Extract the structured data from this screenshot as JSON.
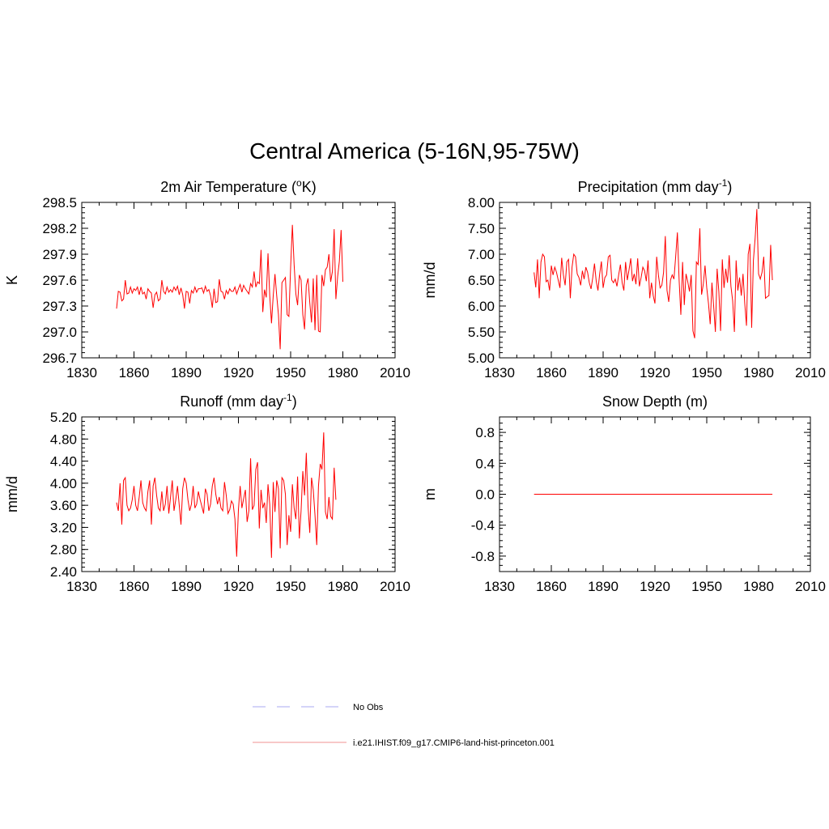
{
  "title": "Central America (5-16N,95-75W)",
  "chart_data": [
    {
      "type": "line",
      "title": "2m Air Temperature (°K)",
      "title_main": "2m Air Temperature (",
      "title_sup": "o",
      "title_end": "K)",
      "ylabel": "K",
      "xlim": [
        1830,
        2010
      ],
      "ylim": [
        296.7,
        298.5
      ],
      "xticks": [
        "1830",
        "1860",
        "1890",
        "1920",
        "1950",
        "1980",
        "2010"
      ],
      "yticks": [
        "296.7",
        "297.0",
        "297.3",
        "297.6",
        "297.9",
        "298.2",
        "298.5"
      ],
      "series": [
        {
          "name": "i.e21.IHIST.f09_g17.CMIP6-land-hist-princeton.001",
          "x_start": 1850,
          "values": [
            297.27,
            297.47,
            297.46,
            297.36,
            297.38,
            297.6,
            297.44,
            297.45,
            297.52,
            297.45,
            297.5,
            297.48,
            297.52,
            297.43,
            297.52,
            297.44,
            297.46,
            297.38,
            297.5,
            297.47,
            297.45,
            297.28,
            297.43,
            297.46,
            297.36,
            297.38,
            297.6,
            297.47,
            297.44,
            297.52,
            297.46,
            297.49,
            297.46,
            297.52,
            297.48,
            297.53,
            297.43,
            297.51,
            297.43,
            297.27,
            297.47,
            297.46,
            297.33,
            297.48,
            297.45,
            297.52,
            297.46,
            297.5,
            297.5,
            297.51,
            297.45,
            297.53,
            297.47,
            297.49,
            297.42,
            297.28,
            297.5,
            297.34,
            297.35,
            297.61,
            297.47,
            297.46,
            297.38,
            297.48,
            297.44,
            297.5,
            297.47,
            297.47,
            297.52,
            297.44,
            297.5,
            297.55,
            297.46,
            297.54,
            297.5,
            297.47,
            297.44,
            297.56,
            297.52,
            297.7,
            297.52,
            297.58,
            297.56,
            297.95,
            297.23,
            297.49,
            297.4,
            297.91,
            297.42,
            297.1,
            297.42,
            297.67,
            297.42,
            297.2,
            296.8,
            297.57,
            297.6,
            297.63,
            297.2,
            297.18,
            297.75,
            298.24,
            297.78,
            297.44,
            297.31,
            297.66,
            297.6,
            297.2,
            297.03,
            297.54,
            297.62,
            297.34,
            297.11,
            297.62,
            297.02,
            297.66,
            297.01,
            297.0,
            297.66,
            297.53,
            297.72,
            297.75,
            297.9,
            297.58,
            297.7,
            298.19,
            297.38,
            297.64,
            297.82,
            298.18,
            297.58
          ]
        }
      ]
    },
    {
      "type": "line",
      "title": "Precipitation (mm day-1)",
      "title_main": "Precipitation (mm day",
      "title_sup": "-1",
      "title_end": ")",
      "ylabel": "mm/d",
      "xlim": [
        1830,
        2010
      ],
      "ylim": [
        5.0,
        8.0
      ],
      "xticks": [
        "1830",
        "1860",
        "1890",
        "1920",
        "1950",
        "1980",
        "2010"
      ],
      "yticks": [
        "5.00",
        "5.50",
        "6.00",
        "6.50",
        "7.00",
        "7.50",
        "8.00"
      ],
      "series": [
        {
          "name": "i.e21.IHIST.f09_g17.CMIP6-land-hist-princeton.001",
          "x_start": 1850,
          "values": [
            6.65,
            6.36,
            6.9,
            6.15,
            6.85,
            7.0,
            6.95,
            6.47,
            6.5,
            6.3,
            6.78,
            6.6,
            6.75,
            6.65,
            6.5,
            6.35,
            6.93,
            6.6,
            6.4,
            6.85,
            6.9,
            6.15,
            6.75,
            7.0,
            6.95,
            6.62,
            6.55,
            6.4,
            6.68,
            6.52,
            6.75,
            6.65,
            6.45,
            6.33,
            6.55,
            6.82,
            6.48,
            6.3,
            6.62,
            6.86,
            6.35,
            6.55,
            6.6,
            6.95,
            6.98,
            6.5,
            6.45,
            6.52,
            6.38,
            6.6,
            6.8,
            6.45,
            6.3,
            6.85,
            6.5,
            6.7,
            6.92,
            6.48,
            6.62,
            6.42,
            6.92,
            6.38,
            6.55,
            6.75,
            6.68,
            6.48,
            6.88,
            6.15,
            6.45,
            6.2,
            6.05,
            6.95,
            6.6,
            6.35,
            6.4,
            6.65,
            7.35,
            6.3,
            6.08,
            6.5,
            6.6,
            6.52,
            6.95,
            7.42,
            6.5,
            5.83,
            6.85,
            6.02,
            6.62,
            6.47,
            6.28,
            6.6,
            5.52,
            5.38,
            6.85,
            6.8,
            7.5,
            6.22,
            6.42,
            6.78,
            6.35,
            6.05,
            5.65,
            6.45,
            6.0,
            5.5,
            6.72,
            6.28,
            5.52,
            6.9,
            6.35,
            6.72,
            6.45,
            6.98,
            6.38,
            6.1,
            5.5,
            6.88,
            6.3,
            6.55,
            6.2,
            6.62,
            6.05,
            5.62,
            7.0,
            7.2,
            5.58,
            6.88,
            7.3,
            7.87,
            6.62,
            6.52,
            6.65,
            6.95,
            6.15,
            6.18,
            6.2,
            7.18,
            6.5
          ]
        }
      ]
    },
    {
      "type": "line",
      "title": "Runoff (mm day-1)",
      "title_main": "Runoff (mm day",
      "title_sup": "-1",
      "title_end": ")",
      "ylabel": "mm/d",
      "xlim": [
        1830,
        2010
      ],
      "ylim": [
        2.4,
        5.2
      ],
      "xticks": [
        "1830",
        "1860",
        "1890",
        "1920",
        "1950",
        "1980",
        "2010"
      ],
      "yticks": [
        "2.40",
        "2.80",
        "3.20",
        "3.60",
        "4.00",
        "4.40",
        "4.80",
        "5.20"
      ],
      "series": [
        {
          "name": "i.e21.IHIST.f09_g17.CMIP6-land-hist-princeton.001",
          "x_start": 1850,
          "values": [
            3.65,
            3.5,
            4.0,
            3.25,
            4.05,
            4.1,
            3.6,
            3.5,
            3.55,
            3.7,
            3.95,
            3.6,
            3.5,
            3.75,
            4.05,
            3.65,
            3.55,
            3.5,
            3.85,
            4.05,
            3.25,
            3.95,
            4.1,
            3.78,
            3.55,
            3.5,
            3.85,
            3.5,
            3.62,
            3.95,
            3.45,
            3.75,
            4.05,
            3.5,
            3.7,
            3.95,
            3.6,
            3.25,
            3.9,
            4.1,
            4.0,
            3.7,
            3.5,
            3.62,
            3.95,
            3.55,
            3.62,
            3.85,
            3.7,
            3.58,
            3.45,
            3.9,
            3.8,
            3.5,
            3.62,
            3.95,
            4.1,
            3.8,
            3.62,
            3.75,
            3.55,
            3.5,
            4.02,
            3.78,
            3.45,
            3.52,
            3.68,
            3.62,
            3.35,
            2.67,
            3.52,
            3.95,
            3.55,
            3.72,
            3.88,
            3.3,
            3.5,
            4.45,
            3.52,
            3.6,
            4.25,
            4.38,
            3.18,
            3.88,
            3.55,
            3.65,
            3.28,
            3.98,
            3.62,
            2.65,
            4.02,
            3.48,
            4.05,
            3.9,
            2.82,
            4.1,
            4.05,
            3.8,
            2.88,
            3.42,
            3.12,
            3.98,
            3.55,
            3.35,
            4.12,
            3.0,
            3.5,
            4.22,
            3.78,
            4.55,
            3.58,
            3.1,
            4.1,
            3.88,
            3.42,
            2.88,
            3.95,
            4.35,
            4.25,
            4.92,
            3.48,
            3.35,
            3.75,
            3.4,
            3.35,
            4.28,
            3.7
          ]
        }
      ]
    },
    {
      "type": "line",
      "title": "Snow Depth (m)",
      "title_main": "Snow Depth (m)",
      "title_sup": "",
      "title_end": "",
      "ylabel": "m",
      "xlim": [
        1830,
        2010
      ],
      "ylim": [
        -1.0,
        1.0
      ],
      "xticks": [
        "1830",
        "1860",
        "1890",
        "1920",
        "1950",
        "1980",
        "2010"
      ],
      "yticks": [
        "-0.8",
        "-0.4",
        "0.0",
        "0.4",
        "0.8"
      ],
      "ytick_values": [
        -0.8,
        -0.4,
        0.0,
        0.4,
        0.8
      ],
      "series": [
        {
          "name": "i.e21.IHIST.f09_g17.CMIP6-land-hist-princeton.001",
          "x_start": 1850,
          "constant": 0.0,
          "x_end": 1988
        }
      ]
    }
  ],
  "legend": [
    {
      "label": "No Obs",
      "color": "#a8a8f0",
      "dash": true
    },
    {
      "label": "i.e21.IHIST.f09_g17.CMIP6-land-hist-princeton.001",
      "color": "#f09090",
      "dash": false
    }
  ],
  "line_color": "#ff0000"
}
